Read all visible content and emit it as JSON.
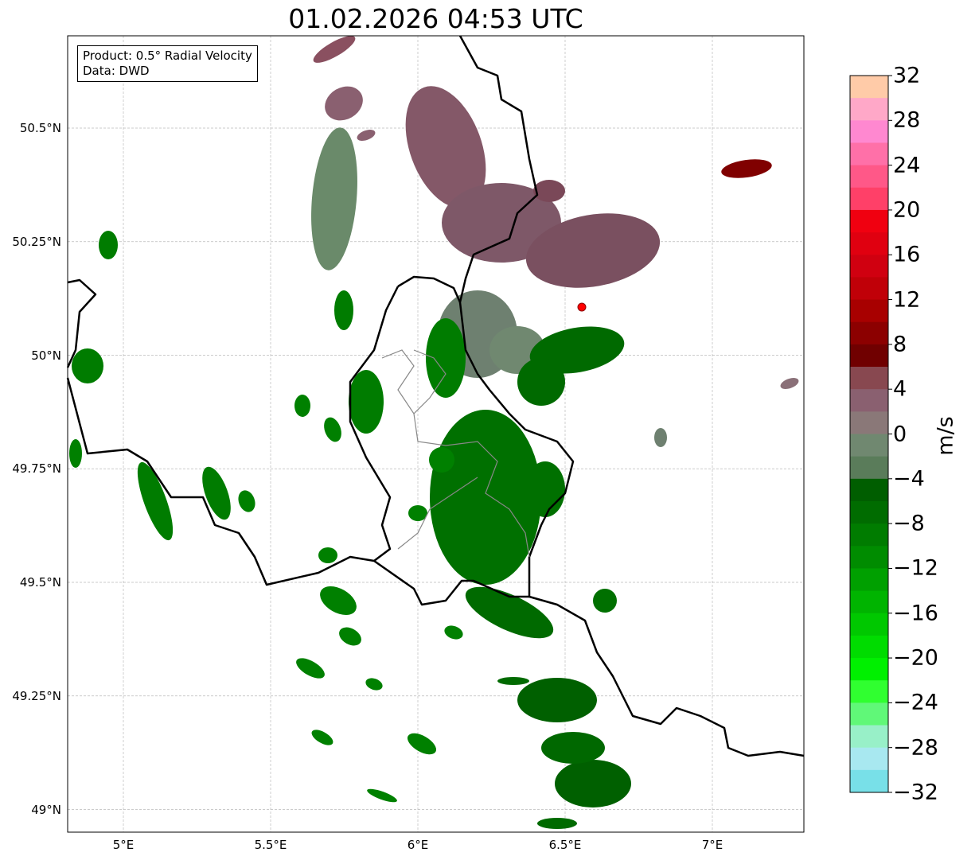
{
  "title": "01.02.2026 04:53 UTC",
  "info_box": {
    "product": "Product: 0.5° Radial Velocity",
    "data": "Data: DWD"
  },
  "map": {
    "lon_range": [
      4.81,
      7.31
    ],
    "lat_range": [
      48.96,
      50.7
    ],
    "x_ticks": [
      {
        "value": 5,
        "label": "5°E"
      },
      {
        "value": 5.5,
        "label": "5.5°E"
      },
      {
        "value": 6,
        "label": "6°E"
      },
      {
        "value": 6.5,
        "label": "6.5°E"
      },
      {
        "value": 7,
        "label": "7°E"
      }
    ],
    "y_ticks": [
      {
        "value": 50.5,
        "label": "50.5°N"
      },
      {
        "value": 50.25,
        "label": "50.25°N"
      },
      {
        "value": 50,
        "label": "50°N"
      },
      {
        "value": 49.75,
        "label": "49.75°N"
      },
      {
        "value": 49.5,
        "label": "49.5°N"
      },
      {
        "value": 49.25,
        "label": "49.25°N"
      },
      {
        "value": 49,
        "label": "49°N"
      }
    ],
    "radar_site_color": "#ff0000"
  },
  "colorbar": {
    "label": "m/s",
    "range": [
      -32,
      32
    ],
    "step": 2,
    "ticks": [
      "32",
      "28",
      "24",
      "20",
      "16",
      "12",
      "8",
      "4",
      "0",
      "−4",
      "−8",
      "−12",
      "−16",
      "−20",
      "−24",
      "−28",
      "−32"
    ],
    "colors_top_to_bottom": [
      "#ffcba8",
      "#ffa8c8",
      "#ff88d0",
      "#ff70a8",
      "#ff5888",
      "#ff4068",
      "#f00010",
      "#e00010",
      "#d00010",
      "#c00008",
      "#a80000",
      "#8c0000",
      "#700000",
      "#884850",
      "#8a6070",
      "#8a7878",
      "#708870",
      "#5a7c5a",
      "#005e00",
      "#006c00",
      "#007c00",
      "#008c00",
      "#00a000",
      "#00b400",
      "#00c800",
      "#00dc00",
      "#00f000",
      "#30ff30",
      "#60f878",
      "#98f0c8",
      "#a8e8f0",
      "#78e0e8"
    ]
  }
}
